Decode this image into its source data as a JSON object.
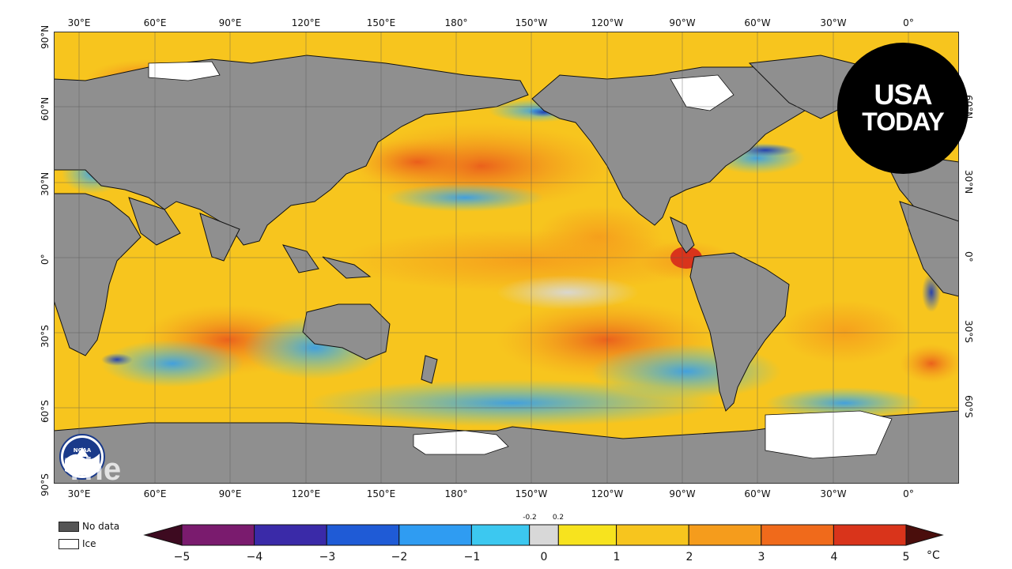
{
  "map": {
    "colors": {
      "land": "#8f8f8f",
      "ice": "#ffffff",
      "coast": "#111111",
      "grid": "#777777",
      "warm_base": "#f7c51e",
      "warm_mid": "#f59c1c",
      "warm_hot": "#e9561b",
      "cold_light": "#3cc8f0",
      "cold_deep": "#1f5bd6",
      "neutral": "#d8d8d8"
    },
    "lon_labels": [
      "30°E",
      "60°E",
      "90°E",
      "120°E",
      "150°E",
      "180°",
      "150°W",
      "120°W",
      "90°W",
      "60°W",
      "30°W",
      "0°"
    ],
    "lat_labels": [
      "90°N",
      "60°N",
      "30°N",
      "0°",
      "30°S",
      "60°S",
      "90°S"
    ]
  },
  "logo": {
    "line1": "USA",
    "line2": "TODAY"
  },
  "noaa": {
    "text": "NOAA"
  },
  "watermark": "The",
  "legend": {
    "no_data": "No data",
    "ice": "Ice"
  },
  "colorbar": {
    "tick_labels": [
      "−5",
      "−4",
      "−3",
      "−2",
      "−1",
      "0",
      "1",
      "2",
      "3",
      "4",
      "5"
    ],
    "small_labels": [
      "-0.2",
      "0.2"
    ],
    "unit": "°C",
    "colors": [
      "#4a0a2e",
      "#7a1b6e",
      "#3a2aa8",
      "#1f5bd6",
      "#2f9cf2",
      "#3cc8f0",
      "#d8d8d8",
      "#f7e31e",
      "#f7c51e",
      "#f59c1c",
      "#f06a1b",
      "#d9341b",
      "#7a1410"
    ]
  }
}
